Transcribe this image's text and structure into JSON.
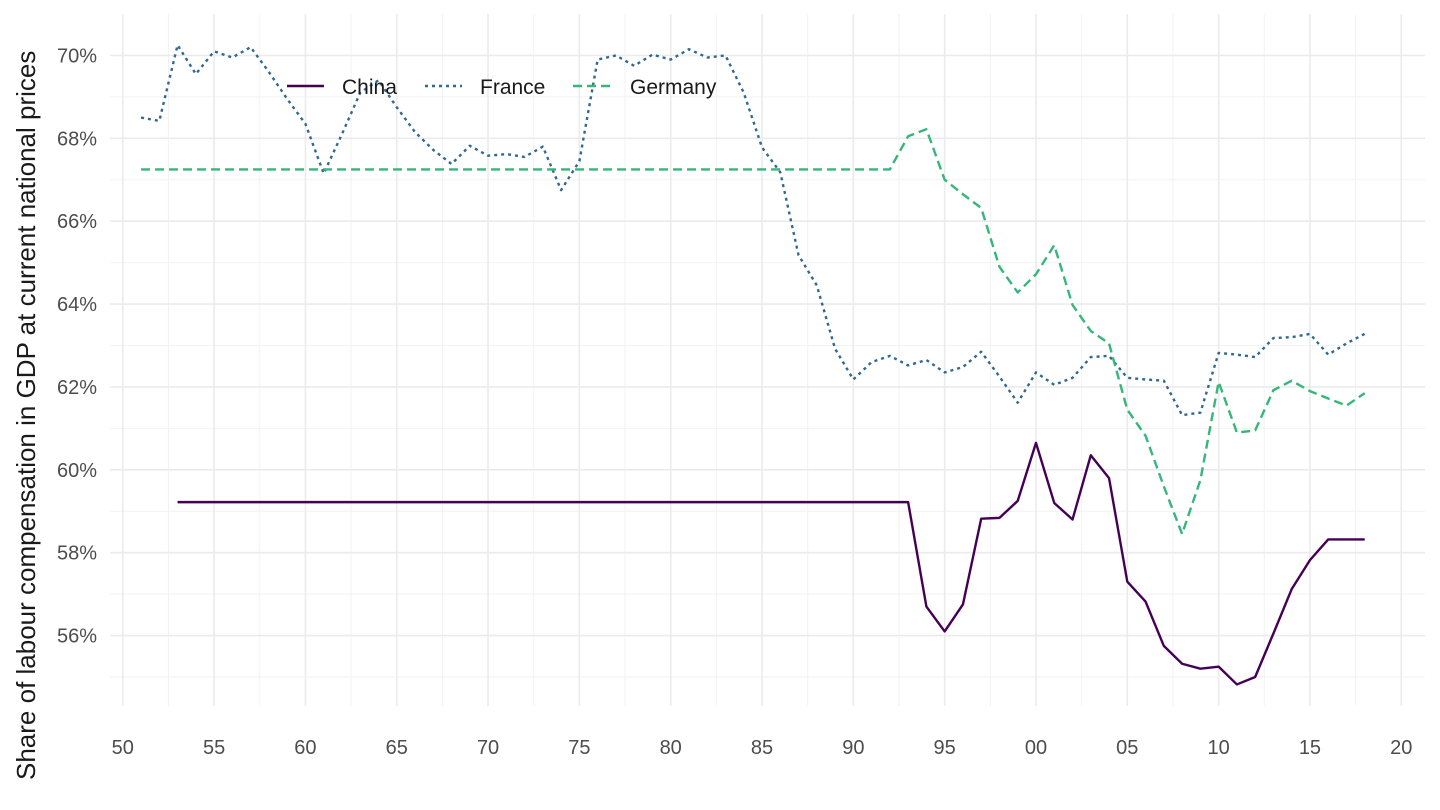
{
  "chart_data": {
    "type": "line",
    "title": "",
    "xlabel": "",
    "ylabel": "Share of labour compensation in GDP at current national prices",
    "x_ticks": [
      {
        "value": 1950,
        "label": "50"
      },
      {
        "value": 1955,
        "label": "55"
      },
      {
        "value": 1960,
        "label": "60"
      },
      {
        "value": 1965,
        "label": "65"
      },
      {
        "value": 1970,
        "label": "70"
      },
      {
        "value": 1975,
        "label": "75"
      },
      {
        "value": 1980,
        "label": "80"
      },
      {
        "value": 1985,
        "label": "85"
      },
      {
        "value": 1990,
        "label": "90"
      },
      {
        "value": 1995,
        "label": "95"
      },
      {
        "value": 2000,
        "label": "00"
      },
      {
        "value": 2005,
        "label": "05"
      },
      {
        "value": 2010,
        "label": "10"
      },
      {
        "value": 2015,
        "label": "15"
      },
      {
        "value": 2020,
        "label": "20"
      }
    ],
    "y_ticks": [
      {
        "value": 56,
        "label": "56%"
      },
      {
        "value": 58,
        "label": "58%"
      },
      {
        "value": 60,
        "label": "60%"
      },
      {
        "value": 62,
        "label": "62%"
      },
      {
        "value": 64,
        "label": "64%"
      },
      {
        "value": 66,
        "label": "66%"
      },
      {
        "value": 68,
        "label": "68%"
      },
      {
        "value": 70,
        "label": "70%"
      }
    ],
    "xlim": [
      1949.3,
      2021.3
    ],
    "ylim": [
      54.3,
      71.0
    ],
    "grid": true,
    "legend_position": "top-left",
    "series": [
      {
        "name": "China",
        "color": "#440154",
        "dash": "solid",
        "x": [
          1953,
          1993,
          1994,
          1995,
          1996,
          1997,
          1998,
          1999,
          2000,
          2001,
          2002,
          2003,
          2004,
          2005,
          2006,
          2007,
          2008,
          2009,
          2010,
          2011,
          2012,
          2013,
          2014,
          2015,
          2016,
          2017,
          2018
        ],
        "values": [
          59.22,
          59.22,
          56.7,
          56.1,
          56.75,
          58.82,
          58.84,
          59.25,
          60.65,
          59.2,
          58.8,
          60.35,
          59.8,
          57.3,
          56.82,
          55.75,
          55.32,
          55.2,
          55.25,
          54.82,
          55.0,
          56.05,
          57.12,
          57.82,
          58.32,
          58.32,
          58.32
        ]
      },
      {
        "name": "France",
        "color": "#31688e",
        "dash": "dotted",
        "x": [
          1951,
          1952,
          1953,
          1954,
          1955,
          1956,
          1957,
          1958,
          1959,
          1960,
          1961,
          1962,
          1963,
          1964,
          1965,
          1966,
          1967,
          1968,
          1969,
          1970,
          1971,
          1972,
          1973,
          1974,
          1975,
          1976,
          1977,
          1978,
          1979,
          1980,
          1981,
          1982,
          1983,
          1984,
          1985,
          1986,
          1987,
          1988,
          1989,
          1990,
          1991,
          1992,
          1993,
          1994,
          1995,
          1996,
          1997,
          1998,
          1999,
          2000,
          2001,
          2002,
          2003,
          2004,
          2005,
          2006,
          2007,
          2008,
          2009,
          2010,
          2011,
          2012,
          2013,
          2014,
          2015,
          2016,
          2017,
          2018
        ],
        "values": [
          68.5,
          68.42,
          70.25,
          69.55,
          70.1,
          69.95,
          70.2,
          69.6,
          68.95,
          68.35,
          67.15,
          68.1,
          69.1,
          69.4,
          68.75,
          68.15,
          67.72,
          67.38,
          67.82,
          67.58,
          67.62,
          67.55,
          67.8,
          66.75,
          67.45,
          69.9,
          70.0,
          69.75,
          70.02,
          69.9,
          70.15,
          69.95,
          70.0,
          69.1,
          67.78,
          67.18,
          65.18,
          64.45,
          62.92,
          62.18,
          62.6,
          62.75,
          62.52,
          62.65,
          62.35,
          62.48,
          62.85,
          62.25,
          61.62,
          62.35,
          62.05,
          62.22,
          62.72,
          62.75,
          62.22,
          62.18,
          62.15,
          61.32,
          61.38,
          62.82,
          62.78,
          62.72,
          63.18,
          63.2,
          63.28,
          62.78,
          63.05,
          63.28
        ]
      },
      {
        "name": "Germany",
        "color": "#35b779",
        "dash": "dashed",
        "x": [
          1951,
          1992,
          1993,
          1994,
          1995,
          1996,
          1997,
          1998,
          1999,
          2000,
          2001,
          2002,
          2003,
          2004,
          2005,
          2006,
          2007,
          2008,
          2009,
          2010,
          2011,
          2012,
          2013,
          2014,
          2015,
          2016,
          2017,
          2018
        ],
        "values": [
          67.25,
          67.25,
          68.05,
          68.22,
          67.0,
          66.65,
          66.32,
          64.9,
          64.28,
          64.72,
          65.42,
          63.98,
          63.35,
          63.05,
          61.45,
          60.82,
          59.6,
          58.45,
          59.75,
          62.12,
          60.9,
          60.95,
          61.92,
          62.15,
          61.9,
          61.72,
          61.55,
          61.85
        ]
      }
    ]
  }
}
